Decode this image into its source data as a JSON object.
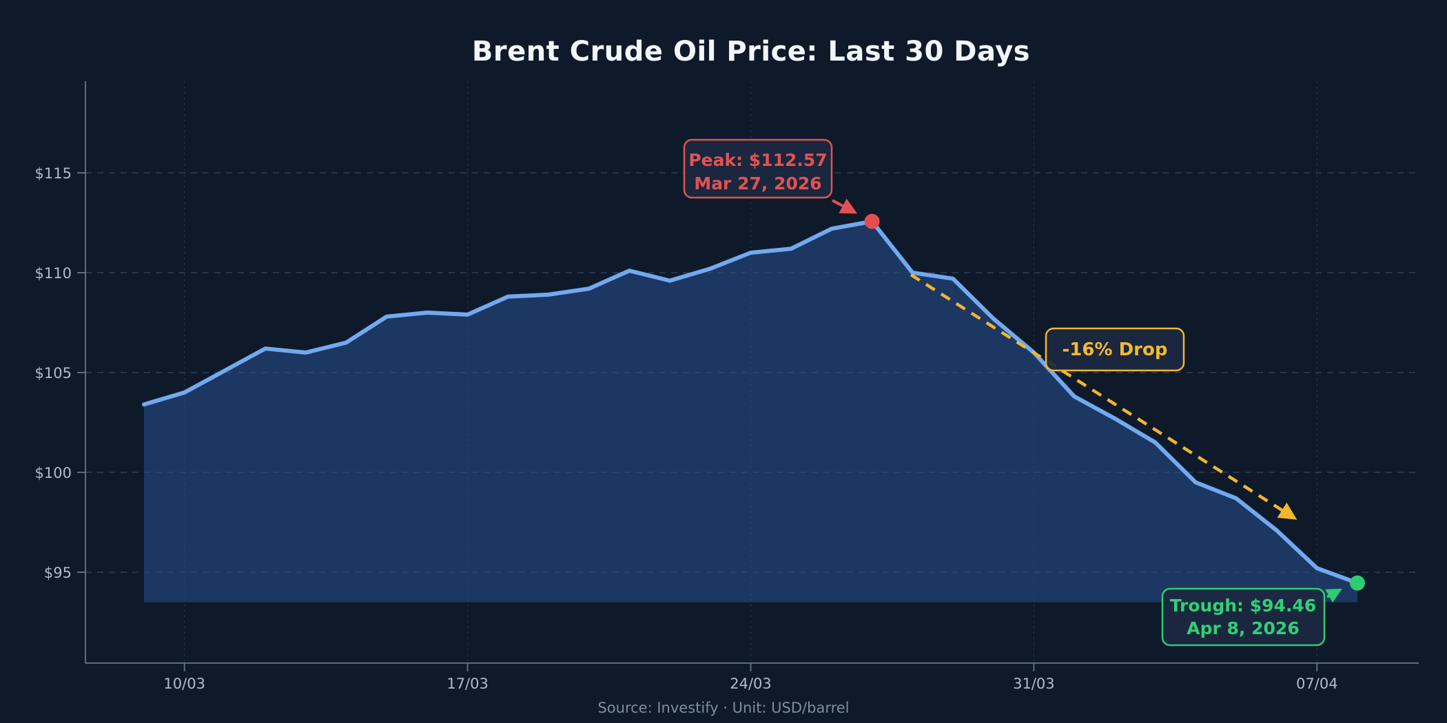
{
  "title": "Brent Crude Oil Price: Last 30 Days",
  "footer": "Source: Investify · Unit: USD/barrel",
  "y_axis": {
    "tick_labels": [
      "$95",
      "$100",
      "$105",
      "$110",
      "$115"
    ],
    "tick_values": [
      95,
      100,
      105,
      110,
      115
    ]
  },
  "x_axis": {
    "ticks": [
      "10/03",
      "17/03",
      "24/03",
      "31/03",
      "07/04"
    ]
  },
  "colors": {
    "background": "#0e1a2a",
    "line": "#72a9f0",
    "area": "#274a86",
    "grid": "#3b4a63",
    "axis": "#66758c",
    "tick_text": "#b0bccd",
    "title_text": "#f2f6fa",
    "footer_text": "#7f8da1",
    "peak_accent": "#e25252",
    "trough_accent": "#2ecc71",
    "drop_accent": "#f1b52e",
    "annotation_box_fill": "#1b2940"
  },
  "chart_data": {
    "type": "area",
    "title": "Brent Crude Oil Price: Last 30 Days",
    "xlabel": "",
    "ylabel": "",
    "unit": "USD/barrel",
    "source": "Investify",
    "x": [
      "09/03",
      "10/03",
      "11/03",
      "12/03",
      "13/03",
      "14/03",
      "15/03",
      "16/03",
      "17/03",
      "18/03",
      "19/03",
      "20/03",
      "21/03",
      "22/03",
      "23/03",
      "24/03",
      "25/03",
      "26/03",
      "27/03",
      "28/03",
      "29/03",
      "30/03",
      "31/03",
      "01/04",
      "02/04",
      "03/04",
      "04/04",
      "05/04",
      "06/04",
      "07/04",
      "08/04"
    ],
    "values": [
      103.4,
      104.0,
      105.1,
      106.2,
      106.0,
      106.5,
      107.8,
      108.0,
      107.9,
      108.8,
      108.9,
      109.2,
      110.1,
      109.6,
      110.2,
      111.0,
      111.2,
      112.2,
      112.57,
      110.0,
      109.7,
      107.7,
      106.0,
      103.8,
      102.7,
      101.5,
      99.5,
      98.7,
      97.1,
      95.2,
      94.46
    ],
    "ylim": [
      90.5,
      119.7
    ],
    "area_baseline": 93.5,
    "grid": {
      "horizontal": "dashed",
      "vertical": "dotted at weekly ticks"
    },
    "legend": "none",
    "annotations": {
      "peak": {
        "line1": "Peak: $112.57",
        "line2": "Mar 27, 2026",
        "date": "27/03",
        "value": 112.57,
        "color": "#e25252"
      },
      "trough": {
        "line1": "Trough: $94.46",
        "line2": "Apr 8, 2026",
        "date": "08/04",
        "value": 94.46,
        "color": "#2ecc71"
      },
      "drop": {
        "label": "-16% Drop",
        "color": "#f1b52e"
      }
    }
  }
}
